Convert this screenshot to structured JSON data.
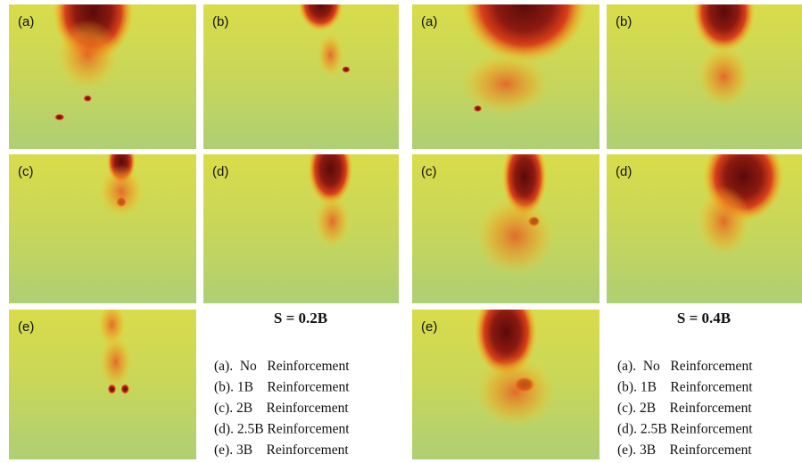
{
  "groups": [
    {
      "title": "S = 0.2B",
      "panels": [
        "(a)",
        "(b)",
        "(c)",
        "(d)",
        "(e)"
      ],
      "legend": [
        "(a).  No   Reinforcement",
        "(b). 1B    Reinforcement",
        "(c). 2B    Reinforcement",
        "(d). 2.5B Reinforcement",
        "(e). 3B    Reinforcement"
      ]
    },
    {
      "title": "S = 0.4B",
      "panels": [
        "(a)",
        "(b)",
        "(c)",
        "(d)",
        "(e)"
      ],
      "legend": [
        "(a).  No   Reinforcement",
        "(b). 1B    Reinforcement",
        "(c). 2B    Reinforcement",
        "(d). 2.5B Reinforcement",
        "(e). 3B    Reinforcement"
      ]
    }
  ]
}
